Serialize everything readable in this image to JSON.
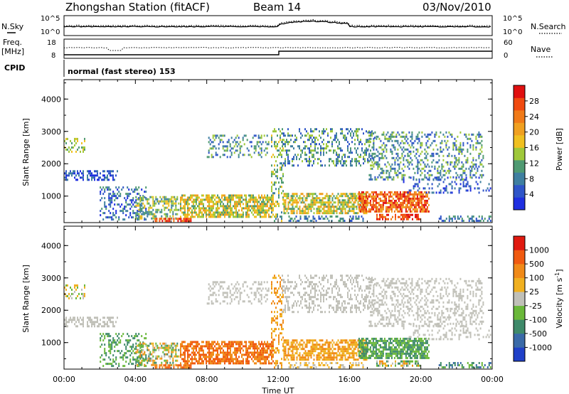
{
  "header": {
    "title": "Zhongshan Station (fitACF)",
    "beam": "Beam 14",
    "date": "03/Nov/2010"
  },
  "strip_noise": {
    "left_label": "N.Sky",
    "right_label": "N.Search",
    "left_ticks": [
      "10^5",
      "10^0"
    ],
    "right_ticks": [
      "10^5",
      "10^0"
    ]
  },
  "strip_freq": {
    "left_label_1": "Freq.",
    "left_label_2": "[MHz]",
    "left_ticks": [
      "18",
      "8"
    ],
    "right_label": "Nave",
    "right_ticks": [
      "60",
      "0"
    ]
  },
  "strip_cpid": {
    "label": "CPID",
    "program": "normal (fast stereo) 153"
  },
  "chart_data": [
    {
      "type": "heatmap",
      "parameter": "Power",
      "ylabel": "Slant Range [km]",
      "ylim": [
        180,
        4600
      ],
      "yticks": [
        "1000",
        "2000",
        "3000",
        "4000"
      ],
      "xlim_hours": [
        0,
        24
      ],
      "colorbar": {
        "label": "Power [dB]",
        "ticks": [
          "4",
          "8",
          "12",
          "16",
          "20",
          "24",
          "28"
        ],
        "colors": [
          "#1f2fe0",
          "#2f55c8",
          "#3f7fa0",
          "#4f9a72",
          "#9fc83a",
          "#f0c020",
          "#f0a020",
          "#f07a18",
          "#f04a10",
          "#e01010"
        ]
      }
    },
    {
      "type": "heatmap",
      "parameter": "Velocity",
      "ylabel": "Slant Range [km]",
      "ylim": [
        180,
        4600
      ],
      "yticks": [
        "1000",
        "2000",
        "3000",
        "4000"
      ],
      "xlim_hours": [
        0,
        24
      ],
      "colorbar": {
        "label_main": "Velocity [m s",
        "label_sup": "-1",
        "label_close": "]",
        "ticks": [
          "1000",
          "500",
          "100",
          "25",
          "-25",
          "-100",
          "-500",
          "-1000"
        ],
        "colors": [
          "#2040c8",
          "#3a6aa8",
          "#3f8a6a",
          "#6ab83a",
          "#c0c0b8",
          "#f0b020",
          "#f08a18",
          "#f05a10",
          "#e01a10"
        ]
      }
    }
  ],
  "time_axis": {
    "xlabel": "Time UT",
    "ticks": [
      "00:00",
      "04:00",
      "08:00",
      "12:00",
      "16:00",
      "20:00",
      "00:00"
    ]
  }
}
